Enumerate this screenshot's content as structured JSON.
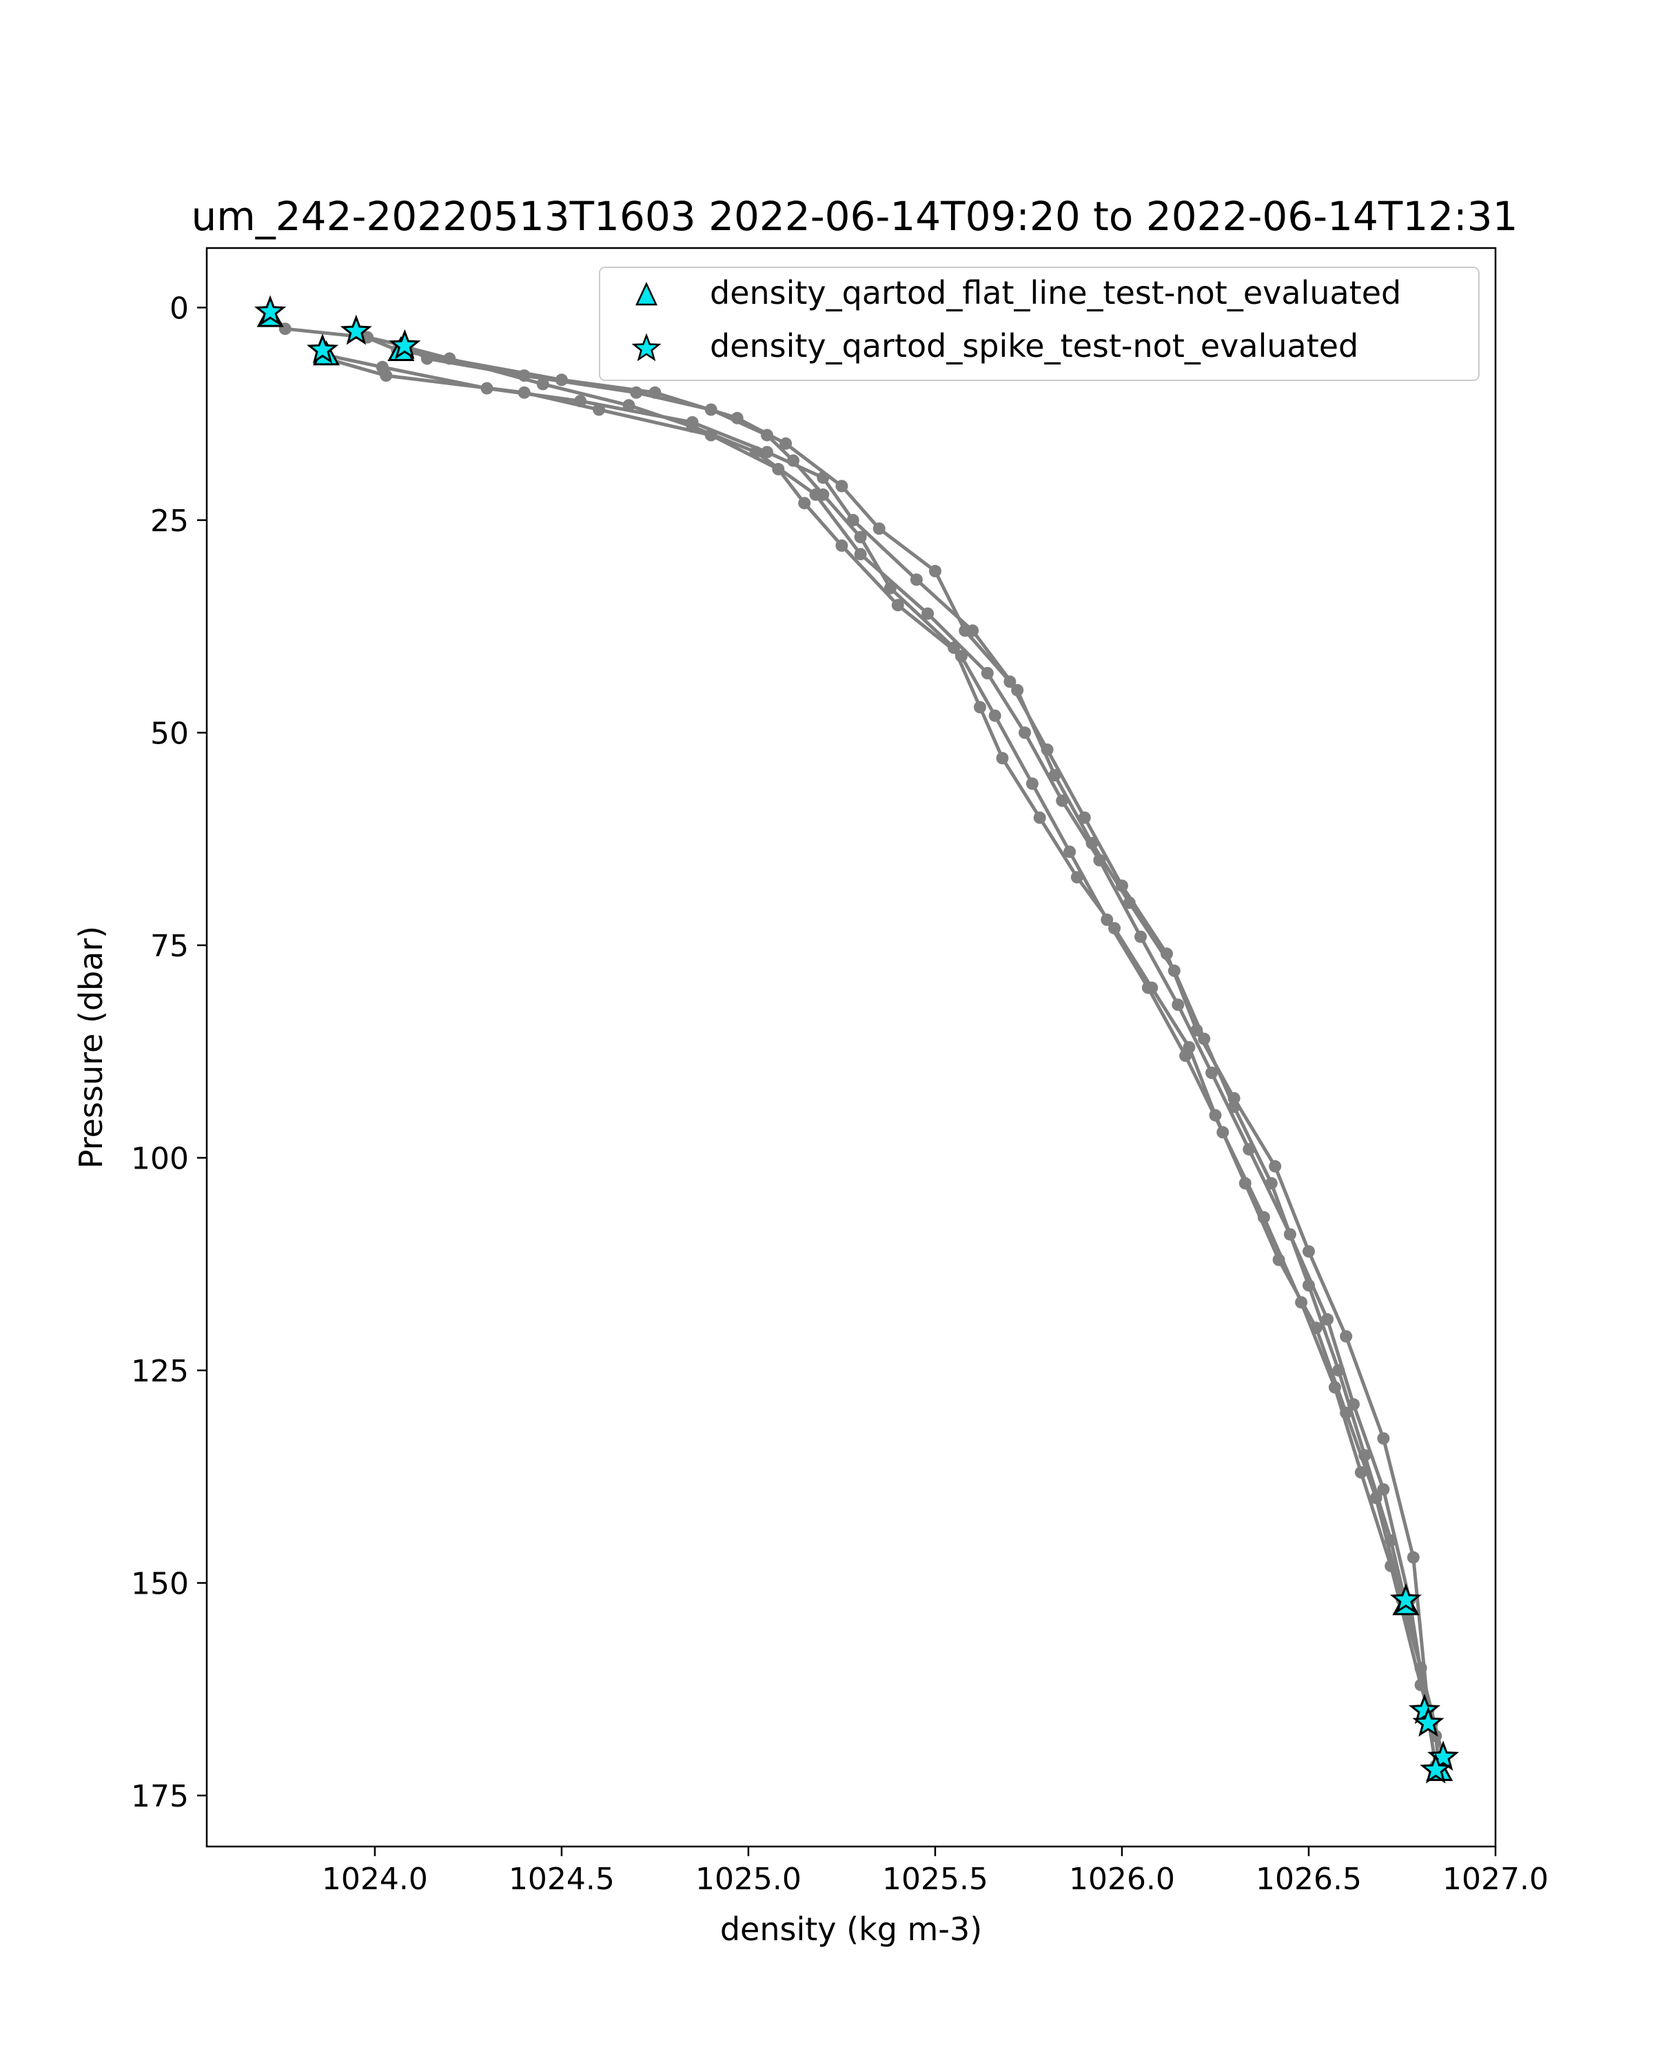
{
  "chart_data": {
    "type": "line",
    "title": "um_242-20220513T1603 2022-06-14T09:20 to 2022-06-14T12:31",
    "xlabel": "density (kg m-3)",
    "ylabel": "Pressure (dbar)",
    "xlim": [
      1023.55,
      1027.0
    ],
    "ylim": [
      181,
      -7
    ],
    "y_inverted": true,
    "xticks": [
      1024.0,
      1024.5,
      1025.0,
      1025.5,
      1026.0,
      1026.5,
      1027.0
    ],
    "xtick_labels": [
      "1024.0",
      "1024.5",
      "1025.0",
      "1025.5",
      "1026.0",
      "1026.5",
      "1027.0"
    ],
    "yticks": [
      0,
      25,
      50,
      75,
      100,
      125,
      150,
      175
    ],
    "ytick_labels": [
      "0",
      "25",
      "50",
      "75",
      "100",
      "125",
      "150",
      "175"
    ],
    "grid": false,
    "legend_placement": "top-right",
    "colors": {
      "profile": "#808080",
      "flag_marker": "#00e5ee",
      "marker_edge": "#000000"
    },
    "legend": [
      {
        "label": "density_qartod_flat_line_test-not_evaluated",
        "marker": "triangle"
      },
      {
        "label": "density_qartod_spike_test-not_evaluated",
        "marker": "star"
      }
    ],
    "series": [
      {
        "x": [
          1023.72,
          1023.76,
          1023.98,
          1024.08,
          1024.14,
          1024.4,
          1024.7,
          1024.9,
          1025.05,
          1025.12,
          1025.2,
          1025.3,
          1025.38,
          1025.55,
          1025.62,
          1025.68,
          1025.78,
          1025.88,
          1025.98,
          1026.08,
          1026.18,
          1026.25,
          1026.33,
          1026.42,
          1026.52,
          1026.6,
          1026.68,
          1026.75,
          1026.8,
          1026.84,
          1026.85
        ],
        "y": [
          0.5,
          2.5,
          3.5,
          4.5,
          6,
          8,
          10,
          12,
          15,
          18,
          22,
          27,
          33,
          40,
          47,
          53,
          60,
          67,
          73,
          80,
          87,
          95,
          103,
          112,
          120,
          130,
          140,
          152,
          160,
          168,
          172
        ]
      },
      {
        "x": [
          1023.86,
          1024.02,
          1024.3,
          1024.55,
          1024.85,
          1025.05,
          1025.2,
          1025.28,
          1025.45,
          1025.6,
          1025.72,
          1025.82,
          1025.92,
          1026.02,
          1026.14,
          1026.22,
          1026.3,
          1026.4,
          1026.5,
          1026.58,
          1026.65,
          1026.72,
          1026.8,
          1026.86
        ],
        "y": [
          5.5,
          7,
          9.5,
          11,
          13.5,
          17,
          20,
          25,
          32,
          38,
          45,
          55,
          63,
          70,
          78,
          86,
          94,
          103,
          115,
          125,
          135,
          145,
          160,
          170.5
        ]
      },
      {
        "x": [
          1023.87,
          1024.03,
          1024.4,
          1024.6,
          1024.9,
          1025.08,
          1025.15,
          1025.25,
          1025.4,
          1025.57,
          1025.66,
          1025.76,
          1025.86,
          1025.96,
          1026.07,
          1026.17,
          1026.27,
          1026.38,
          1026.48,
          1026.57,
          1026.64,
          1026.72,
          1026.8,
          1026.83
        ],
        "y": [
          6,
          8,
          10,
          12,
          15,
          19,
          23,
          28,
          35,
          41,
          48,
          56,
          64,
          72,
          80,
          88,
          97,
          107,
          117,
          127,
          137,
          148,
          162,
          166.5
        ]
      },
      {
        "x": [
          1023.95,
          1024.06,
          1024.5,
          1024.75,
          1024.97,
          1025.1,
          1025.25,
          1025.35,
          1025.5,
          1025.58,
          1025.7,
          1025.8,
          1025.9,
          1026.0,
          1026.12,
          1026.2,
          1026.3,
          1026.41,
          1026.5,
          1026.6,
          1026.7,
          1026.78,
          1026.82
        ],
        "y": [
          3,
          5,
          8.5,
          10,
          13,
          16,
          21,
          26,
          31,
          38,
          44,
          52,
          60,
          68,
          76,
          85,
          93,
          101,
          111,
          121,
          133,
          147,
          165
        ]
      },
      {
        "x": [
          1024.07,
          1024.2,
          1024.45,
          1024.68,
          1024.85,
          1025.02,
          1025.18,
          1025.3,
          1025.48,
          1025.64,
          1025.74,
          1025.84,
          1025.94,
          1026.05,
          1026.15,
          1026.24,
          1026.34,
          1026.45,
          1026.55,
          1026.62,
          1026.7,
          1026.77,
          1026.84
        ],
        "y": [
          4.5,
          6,
          9,
          11.5,
          14,
          17,
          22,
          29,
          36,
          43,
          50,
          58,
          65,
          74,
          82,
          90,
          99,
          109,
          119,
          129,
          139,
          152,
          171.5
        ]
      }
    ],
    "flagged_points": {
      "flat_line_triangles": [
        {
          "x": 1023.72,
          "y": 1.0
        },
        {
          "x": 1023.87,
          "y": 5.5
        },
        {
          "x": 1024.07,
          "y": 5.0
        },
        {
          "x": 1026.76,
          "y": 152.5
        },
        {
          "x": 1026.85,
          "y": 172.0
        }
      ],
      "spike_stars": [
        {
          "x": 1023.72,
          "y": 0.5
        },
        {
          "x": 1023.86,
          "y": 5.0
        },
        {
          "x": 1023.95,
          "y": 2.8
        },
        {
          "x": 1024.08,
          "y": 4.5
        },
        {
          "x": 1026.76,
          "y": 152.0
        },
        {
          "x": 1026.81,
          "y": 165.0
        },
        {
          "x": 1026.82,
          "y": 166.5
        },
        {
          "x": 1026.86,
          "y": 170.5
        },
        {
          "x": 1026.84,
          "y": 172.0
        }
      ]
    }
  }
}
